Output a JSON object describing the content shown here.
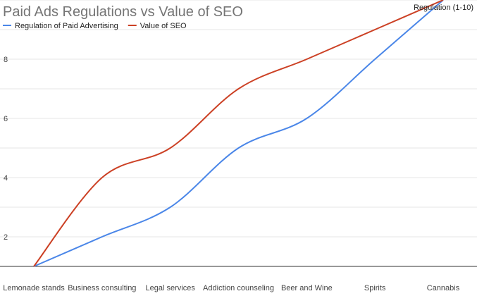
{
  "chart_data": {
    "type": "line",
    "title": "Paid Ads Regulations vs Value of SEO",
    "ylabel": "Regulation (1-10)",
    "xlabel": "",
    "categories": [
      "Lemonade stands",
      "Business consulting",
      "Legal services",
      "Addiction counseling",
      "Beer and Wine",
      "Spirits",
      "Cannabis"
    ],
    "series": [
      {
        "name": "Regulation of Paid Advertising",
        "color": "#4a86e8",
        "values": [
          1,
          2,
          3,
          5,
          6,
          8,
          10
        ]
      },
      {
        "name": "Value of SEO",
        "color": "#cc4125",
        "values": [
          1,
          4,
          5,
          7,
          8,
          9,
          10
        ]
      }
    ],
    "y_ticks": [
      2,
      4,
      6,
      8
    ],
    "ylim": [
      1,
      10
    ],
    "grid": true,
    "smooth": true,
    "legend_position": "top-left"
  }
}
